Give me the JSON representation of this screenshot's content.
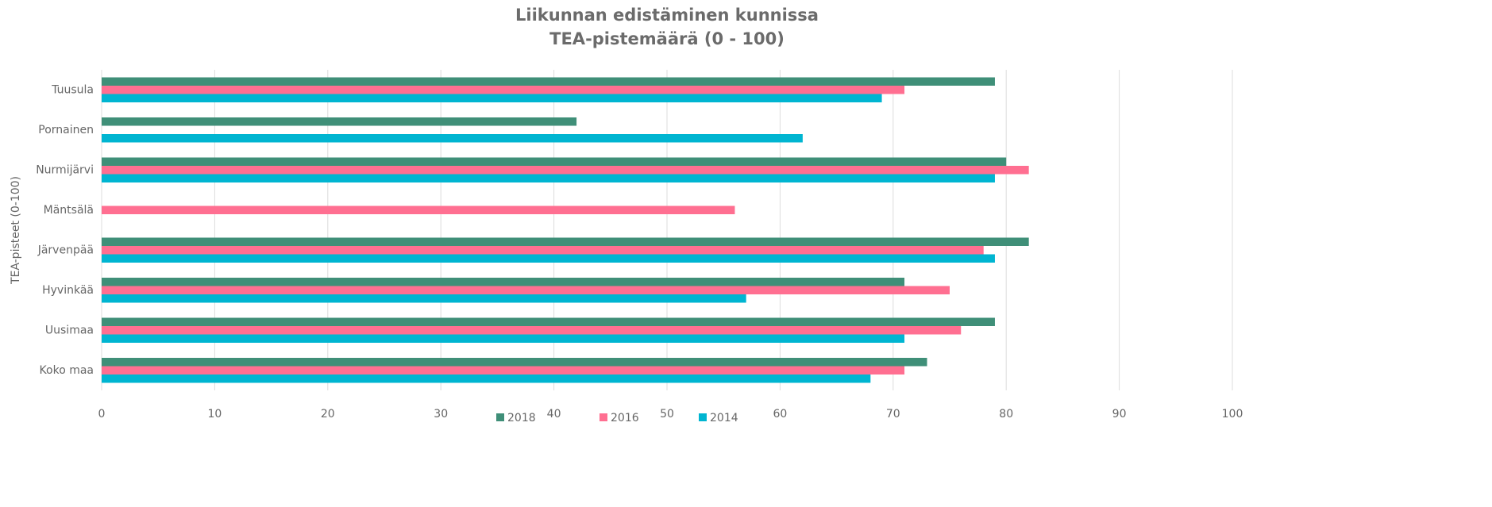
{
  "chart_data": {
    "type": "bar",
    "orientation": "horizontal",
    "title": "Liikunnan edistäminen kunnissa",
    "subtitle": "TEA-pistemäärä (0 - 100)",
    "y_label": "TEA-pisteet (0-100)",
    "categories": [
      "Tuusula",
      "Pornainen",
      "Nurmijärvi",
      "Mäntsälä",
      "Järvenpää",
      "Hyvinkää",
      "Uusimaa",
      "Koko maa"
    ],
    "series": [
      {
        "name": "2018",
        "color": "#3f8f78",
        "values": [
          79,
          42,
          80,
          null,
          82,
          71,
          79,
          73
        ]
      },
      {
        "name": "2016",
        "color": "#ff6f91",
        "values": [
          71,
          null,
          82,
          56,
          78,
          75,
          76,
          71
        ]
      },
      {
        "name": "2014",
        "color": "#00b5d1",
        "values": [
          69,
          62,
          79,
          null,
          79,
          57,
          71,
          68
        ]
      }
    ],
    "xlim": [
      0,
      100
    ],
    "xticks": [
      0,
      10,
      20,
      30,
      40,
      50,
      60,
      70,
      80,
      90,
      100
    ],
    "grid": true,
    "legend": "bottom"
  }
}
